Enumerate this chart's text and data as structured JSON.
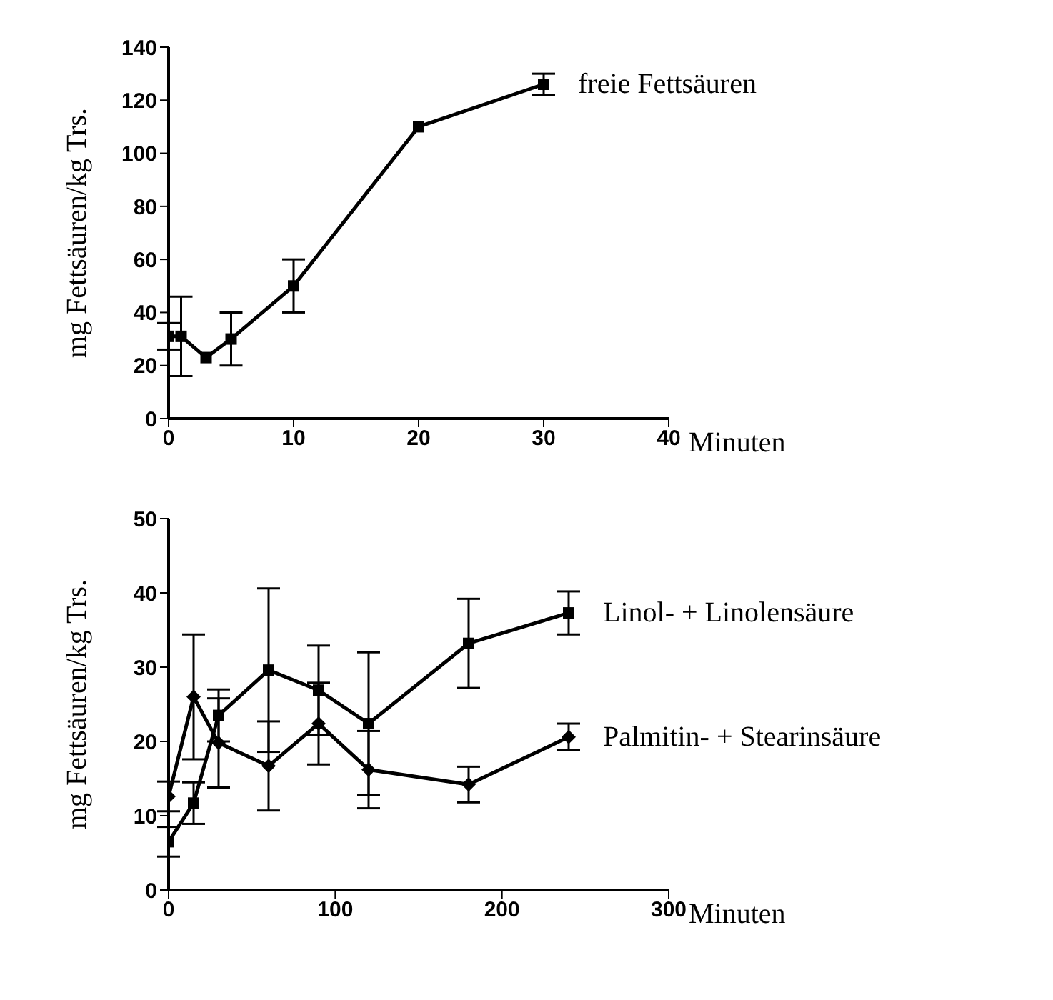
{
  "chart_data": [
    {
      "type": "line",
      "xlabel": "Minuten",
      "ylabel": "mg Fettsäuren/kg Trs.",
      "xlim": [
        0,
        40
      ],
      "xticks": [
        0,
        10,
        20,
        30,
        40
      ],
      "ylim": [
        0,
        140
      ],
      "yticks": [
        0,
        20,
        40,
        60,
        80,
        100,
        120,
        140
      ],
      "grid": false,
      "legend": false,
      "marker": "square",
      "line_style": "solid",
      "series": [
        {
          "name": "freie Fettsäuren",
          "color": "#000000",
          "x": [
            0,
            1,
            3,
            5,
            10,
            20,
            30
          ],
          "values": [
            31,
            31,
            23,
            30,
            50,
            110,
            126
          ],
          "errors": [
            5,
            15,
            null,
            10,
            10,
            null,
            4
          ]
        }
      ]
    },
    {
      "type": "line",
      "xlabel": "Minuten",
      "ylabel": "mg Fettsäuren/kg Trs.",
      "xlim": [
        0,
        300
      ],
      "xticks": [
        0,
        100,
        200,
        300
      ],
      "ylim": [
        0,
        50
      ],
      "yticks": [
        0,
        10,
        20,
        30,
        40,
        50
      ],
      "grid": false,
      "legend": false,
      "line_style": "solid",
      "series": [
        {
          "name": "Linol- + Linolensäure",
          "color": "#000000",
          "marker": "square",
          "x": [
            0,
            15,
            30,
            60,
            90,
            120,
            180,
            240
          ],
          "values": [
            6.5,
            11.7,
            23.5,
            29.6,
            26.9,
            22.4,
            33.2,
            37.3
          ],
          "errors": [
            2,
            2.8,
            3.5,
            11,
            6,
            9.6,
            6,
            2.9
          ]
        },
        {
          "name": "Palmitin- + Stearinsäure",
          "color": "#000000",
          "marker": "diamond",
          "x": [
            0,
            15,
            30,
            60,
            90,
            120,
            180,
            240
          ],
          "values": [
            12.6,
            26,
            19.8,
            16.7,
            22.4,
            16.2,
            14.2,
            20.6
          ],
          "errors": [
            2,
            8.4,
            6,
            6,
            5.5,
            5.2,
            2.4,
            1.8
          ]
        }
      ]
    }
  ]
}
